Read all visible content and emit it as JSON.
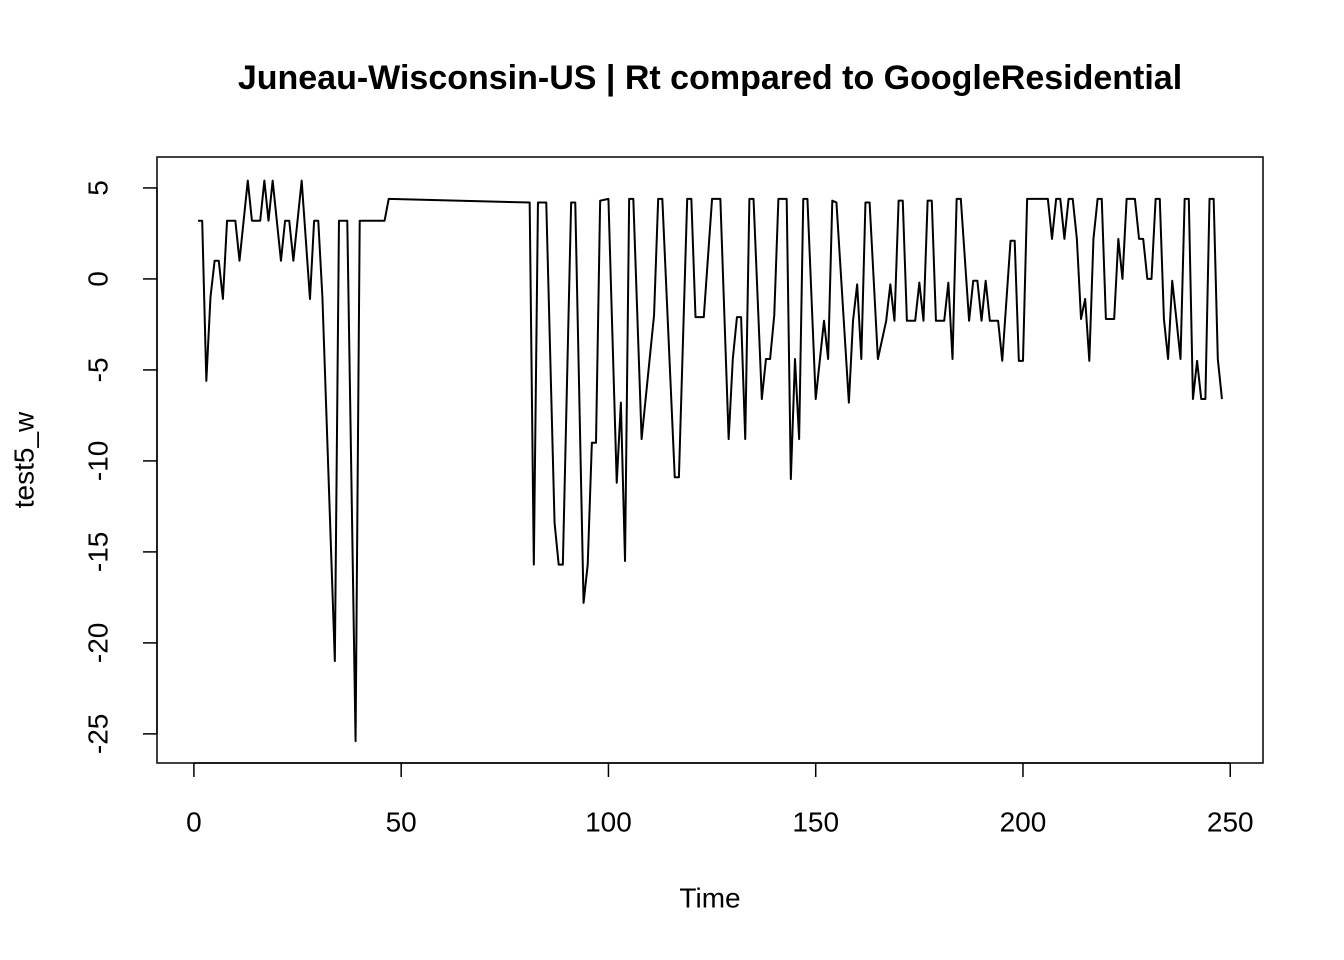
{
  "chart_data": {
    "type": "line",
    "title": "Juneau-Wisconsin-US | Rt compared to GoogleResidential",
    "x_label": "Time",
    "y_label": "test5_w",
    "color": "#000000",
    "x": [
      1,
      2,
      3,
      4,
      5,
      6,
      7,
      8,
      10,
      11,
      13,
      14,
      16,
      17,
      18,
      19,
      21,
      22,
      23,
      24,
      26,
      28,
      29,
      30,
      31,
      34,
      35,
      37,
      39,
      40,
      46,
      47,
      81,
      82,
      83,
      85,
      87,
      88,
      89,
      91,
      92,
      94,
      95,
      96,
      97,
      98,
      100,
      102,
      103,
      104,
      105,
      106,
      108,
      111,
      112,
      113,
      116,
      117,
      119,
      120,
      121,
      123,
      125,
      127,
      129,
      130,
      131,
      132,
      133,
      134,
      135,
      137,
      138,
      139,
      140,
      141,
      143,
      144,
      145,
      146,
      147,
      148,
      150,
      152,
      153,
      154,
      155,
      158,
      159,
      160,
      161,
      162,
      163,
      165,
      167,
      168,
      169,
      170,
      171,
      172,
      174,
      175,
      176,
      177,
      178,
      179,
      181,
      182,
      183,
      184,
      185,
      187,
      188,
      189,
      190,
      191,
      192,
      194,
      195,
      197,
      198,
      199,
      200,
      201,
      206,
      207,
      208,
      209,
      210,
      211,
      212,
      213,
      214,
      215,
      216,
      217,
      218,
      219,
      220,
      222,
      223,
      224,
      225,
      227,
      228,
      229,
      230,
      231,
      232,
      233,
      234,
      235,
      236,
      237,
      238,
      239,
      240,
      241,
      242,
      243,
      244,
      245,
      246,
      247,
      248
    ],
    "values": [
      3.2,
      3.2,
      -5.6,
      -1,
      1,
      1,
      -1.1,
      3.2,
      3.2,
      1,
      5.4,
      3.2,
      3.2,
      5.4,
      3.2,
      5.4,
      1,
      3.2,
      3.2,
      1,
      5.4,
      -1.1,
      3.2,
      3.2,
      -1,
      -21,
      3.2,
      3.2,
      -25.4,
      3.2,
      3.2,
      4.4,
      4.2,
      -15.7,
      4.2,
      4.2,
      -13.4,
      -15.7,
      -15.7,
      4.2,
      4.2,
      -17.8,
      -15.7,
      -9,
      -9,
      4.3,
      4.4,
      -11.2,
      -6.8,
      -15.5,
      4.4,
      4.4,
      -8.8,
      -2,
      4.4,
      4.4,
      -10.9,
      -10.9,
      4.4,
      4.4,
      -2.1,
      -2.1,
      4.4,
      4.4,
      -8.8,
      -4.4,
      -2.1,
      -2.1,
      -8.8,
      4.4,
      4.4,
      -6.6,
      -4.4,
      -4.4,
      -2,
      4.4,
      4.4,
      -11,
      -4.4,
      -8.8,
      4.4,
      4.4,
      -6.6,
      -2.3,
      -4.4,
      4.3,
      4.2,
      -6.8,
      -2.3,
      -0.3,
      -4.4,
      4.2,
      4.2,
      -4.4,
      -2.3,
      -0.3,
      -2.3,
      4.3,
      4.3,
      -2.3,
      -2.3,
      -0.2,
      -2.3,
      4.3,
      4.3,
      -2.3,
      -2.3,
      -0.2,
      -4.4,
      4.4,
      4.4,
      -2.3,
      -0.1,
      -0.1,
      -2.3,
      -0.1,
      -2.3,
      -2.3,
      -4.5,
      2.1,
      2.1,
      -4.5,
      -4.5,
      4.4,
      4.4,
      2.2,
      4.4,
      4.4,
      2.2,
      4.4,
      4.4,
      2.2,
      -2.2,
      -1.1,
      -4.5,
      2.2,
      4.4,
      4.4,
      -2.2,
      -2.2,
      2.2,
      0,
      4.4,
      4.4,
      2.2,
      2.2,
      0,
      0,
      4.4,
      4.4,
      -2.2,
      -4.4,
      -0.1,
      -2.2,
      -4.4,
      4.4,
      4.4,
      -6.6,
      -4.5,
      -6.6,
      -6.6,
      4.4,
      4.4,
      -4.4,
      -6.6
    ],
    "xlim": [
      -8.9,
      257.9
    ],
    "ylim": [
      -26.6,
      6.7
    ],
    "xticks": [
      0,
      50,
      100,
      150,
      200,
      250
    ],
    "yticks": [
      -25,
      -20,
      -15,
      -10,
      -5,
      0,
      5
    ]
  }
}
